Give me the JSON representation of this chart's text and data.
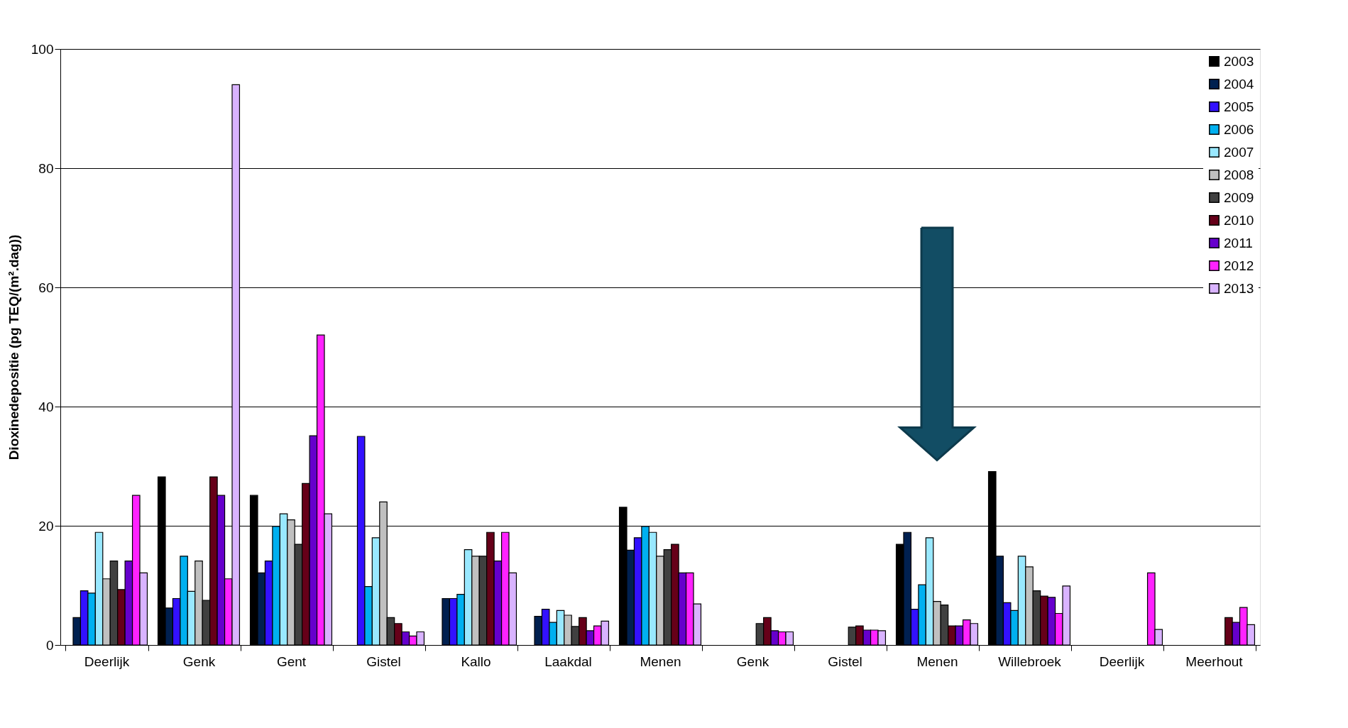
{
  "chart_data": {
    "type": "bar",
    "ylabel": "Dioxinedepositie (pg TEQ/(m².dag))",
    "categories": [
      "Deerlijk",
      "Genk",
      "Gent",
      "Gistel",
      "Kallo",
      "Laakdal",
      "Menen",
      "Genk",
      "Gistel",
      "Menen",
      "Willebroek",
      "Deerlijk",
      "Meerhout"
    ],
    "series": [
      {
        "name": "2003",
        "color": "#000000",
        "values": [
          null,
          28.2,
          25.1,
          null,
          null,
          null,
          23.1,
          null,
          null,
          16.9,
          29.1,
          null,
          null
        ]
      },
      {
        "name": "2004",
        "color": "#002050",
        "values": [
          4.6,
          6.2,
          12.1,
          null,
          7.8,
          4.8,
          15.9,
          null,
          null,
          18.9,
          14.9,
          null,
          null
        ]
      },
      {
        "name": "2005",
        "color": "#3311ff",
        "values": [
          9.1,
          7.8,
          14.1,
          35.0,
          7.8,
          6.0,
          18.0,
          null,
          null,
          6.0,
          7.1,
          null,
          null
        ]
      },
      {
        "name": "2006",
        "color": "#00b0f0",
        "values": [
          8.7,
          14.9,
          19.9,
          9.8,
          8.5,
          3.8,
          19.9,
          null,
          null,
          10.1,
          5.8,
          null,
          null
        ]
      },
      {
        "name": "2007",
        "color": "#99e8ff",
        "values": [
          18.9,
          9.0,
          22.0,
          18.0,
          16.0,
          5.8,
          18.9,
          null,
          null,
          18.0,
          14.9,
          null,
          null
        ]
      },
      {
        "name": "2008",
        "color": "#c0c0c0",
        "values": [
          11.1,
          14.1,
          21.0,
          24.0,
          14.9,
          5.0,
          14.9,
          null,
          null,
          7.3,
          13.1,
          null,
          null
        ]
      },
      {
        "name": "2009",
        "color": "#404040",
        "values": [
          14.1,
          7.5,
          16.9,
          4.6,
          14.9,
          3.1,
          16.0,
          3.6,
          3.0,
          6.7,
          9.1,
          null,
          null
        ]
      },
      {
        "name": "2010",
        "color": "#660019",
        "values": [
          9.3,
          28.2,
          27.1,
          3.6,
          18.9,
          4.6,
          16.9,
          4.6,
          3.2,
          3.2,
          8.2,
          null,
          4.6
        ]
      },
      {
        "name": "2011",
        "color": "#6600cc",
        "values": [
          14.1,
          25.1,
          35.1,
          2.2,
          14.1,
          2.4,
          12.1,
          2.4,
          2.5,
          3.2,
          8.0,
          null,
          3.8
        ]
      },
      {
        "name": "2012",
        "color": "#ff22ff",
        "values": [
          25.1,
          11.1,
          52.0,
          1.5,
          18.9,
          3.2,
          12.1,
          2.2,
          2.5,
          4.2,
          5.3,
          12.1,
          6.3
        ]
      },
      {
        "name": "2013",
        "color": "#d9b3ff",
        "values": [
          12.1,
          94.0,
          22.0,
          2.2,
          12.1,
          4.0,
          6.9,
          2.2,
          2.4,
          3.6,
          9.9,
          2.6,
          3.4
        ]
      }
    ],
    "ylim": [
      0,
      100
    ],
    "yticks": [
      0,
      20,
      40,
      60,
      80,
      100
    ],
    "grid": "y",
    "legend": "top right"
  }
}
